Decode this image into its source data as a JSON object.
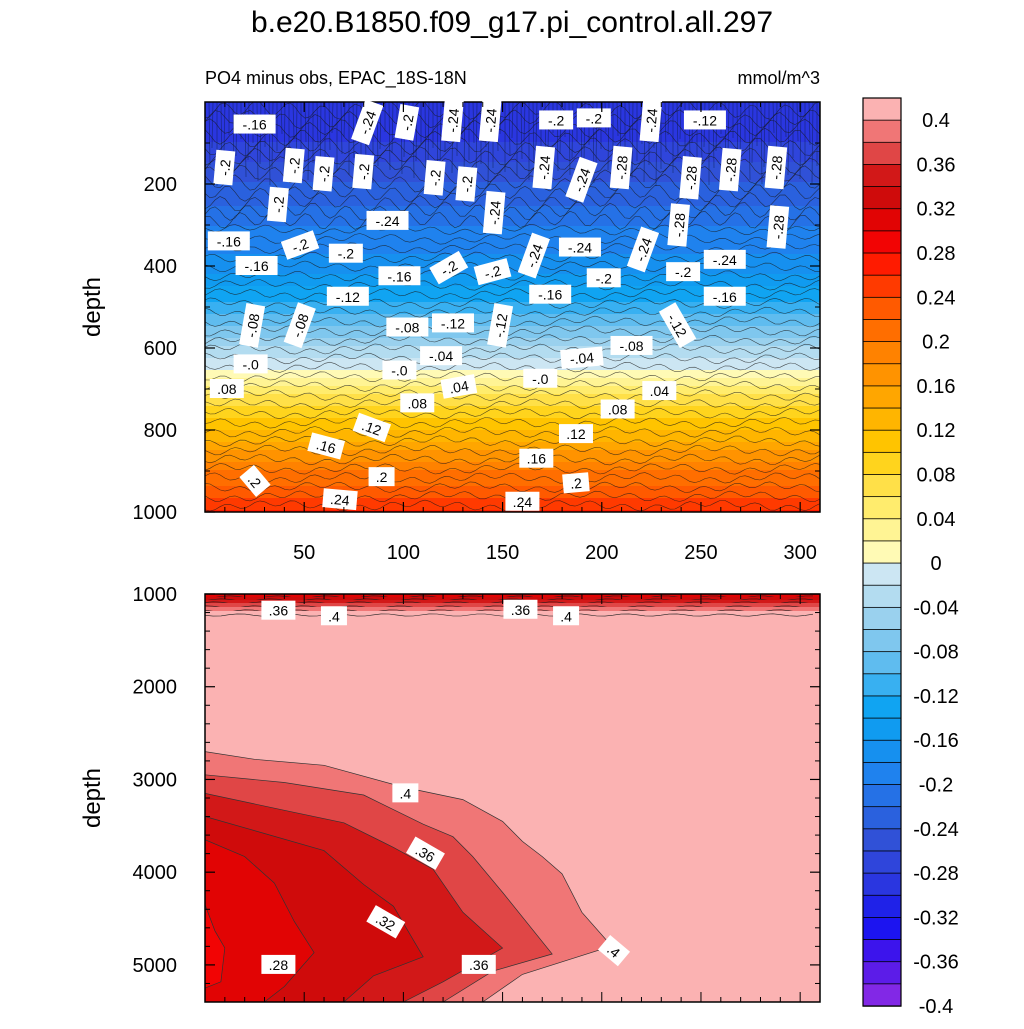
{
  "title": "b.e20.B1850.f09_g17.pi_control.all.297",
  "chart_data": [
    {
      "type": "contour",
      "panel": "upper",
      "left_subtitle": "PO4 minus obs, EPAC_18S-18N",
      "right_subtitle": "mmol/m^3",
      "ylabel": "depth",
      "xlabel": "",
      "xlim": [
        0,
        310
      ],
      "ylim": [
        1000,
        0
      ],
      "x_ticks": [
        50,
        100,
        150,
        200,
        250,
        300
      ],
      "y_ticks": [
        200,
        400,
        600,
        800,
        1000
      ],
      "profile": [
        {
          "depth": 0,
          "value": -0.3
        },
        {
          "depth": 100,
          "value": -0.28
        },
        {
          "depth": 200,
          "value": -0.24
        },
        {
          "depth": 300,
          "value": -0.2
        },
        {
          "depth": 400,
          "value": -0.17
        },
        {
          "depth": 500,
          "value": -0.11
        },
        {
          "depth": 600,
          "value": -0.04
        },
        {
          "depth": 650,
          "value": 0.0
        },
        {
          "depth": 700,
          "value": 0.05
        },
        {
          "depth": 800,
          "value": 0.12
        },
        {
          "depth": 900,
          "value": 0.2
        },
        {
          "depth": 1000,
          "value": 0.26
        }
      ],
      "contour_labels": [
        {
          "x": 25,
          "depth": 55,
          "text": "-.16",
          "angle": 0
        },
        {
          "x": 82,
          "depth": 50,
          "text": "-.24",
          "angle": -70
        },
        {
          "x": 102,
          "depth": 50,
          "text": "-.2",
          "angle": -80
        },
        {
          "x": 125,
          "depth": 45,
          "text": "-.24",
          "angle": -85
        },
        {
          "x": 144,
          "depth": 45,
          "text": "-.24",
          "angle": -85
        },
        {
          "x": 177,
          "depth": 45,
          "text": "-.2",
          "angle": 0
        },
        {
          "x": 196,
          "depth": 40,
          "text": "-.2",
          "angle": 0
        },
        {
          "x": 225,
          "depth": 45,
          "text": "-.24",
          "angle": -85
        },
        {
          "x": 252,
          "depth": 45,
          "text": "-.12",
          "angle": 0
        },
        {
          "x": 10,
          "depth": 160,
          "text": "-.2",
          "angle": -85
        },
        {
          "x": 45,
          "depth": 155,
          "text": "-.2",
          "angle": -85
        },
        {
          "x": 60,
          "depth": 175,
          "text": "-.2",
          "angle": -85
        },
        {
          "x": 80,
          "depth": 170,
          "text": "-.2",
          "angle": -85
        },
        {
          "x": 116,
          "depth": 185,
          "text": "-.2",
          "angle": -85
        },
        {
          "x": 132,
          "depth": 200,
          "text": "-.2",
          "angle": -85
        },
        {
          "x": 171,
          "depth": 160,
          "text": "-.24",
          "angle": -85
        },
        {
          "x": 190,
          "depth": 190,
          "text": "-.24",
          "angle": -70
        },
        {
          "x": 210,
          "depth": 160,
          "text": "-.28",
          "angle": -85
        },
        {
          "x": 245,
          "depth": 185,
          "text": "-.28",
          "angle": -85
        },
        {
          "x": 265,
          "depth": 165,
          "text": "-.28",
          "angle": -85
        },
        {
          "x": 288,
          "depth": 160,
          "text": "-.28",
          "angle": -85
        },
        {
          "x": 37,
          "depth": 250,
          "text": "-.2",
          "angle": -85
        },
        {
          "x": 92,
          "depth": 290,
          "text": "-.24",
          "angle": 0
        },
        {
          "x": 146,
          "depth": 270,
          "text": "-.24",
          "angle": -85
        },
        {
          "x": 239,
          "depth": 300,
          "text": "-.28",
          "angle": -85
        },
        {
          "x": 289,
          "depth": 305,
          "text": "-.28",
          "angle": -85
        },
        {
          "x": 12,
          "depth": 340,
          "text": "-.16",
          "angle": 0
        },
        {
          "x": 48,
          "depth": 350,
          "text": "-.2",
          "angle": -20
        },
        {
          "x": 71,
          "depth": 370,
          "text": "-.2",
          "angle": 0
        },
        {
          "x": 166,
          "depth": 375,
          "text": "-.24",
          "angle": -70
        },
        {
          "x": 189,
          "depth": 355,
          "text": "-.24",
          "angle": 0
        },
        {
          "x": 221,
          "depth": 360,
          "text": "-.24",
          "angle": -70
        },
        {
          "x": 262,
          "depth": 385,
          "text": "-.24",
          "angle": 0
        },
        {
          "x": 26,
          "depth": 400,
          "text": "-.16",
          "angle": 0
        },
        {
          "x": 98,
          "depth": 425,
          "text": "-.16",
          "angle": 0
        },
        {
          "x": 123,
          "depth": 405,
          "text": "-.2",
          "angle": -30
        },
        {
          "x": 145,
          "depth": 415,
          "text": "-.2",
          "angle": -15
        },
        {
          "x": 201,
          "depth": 430,
          "text": "-.2",
          "angle": 0
        },
        {
          "x": 241,
          "depth": 415,
          "text": "-.2",
          "angle": 0
        },
        {
          "x": 72,
          "depth": 475,
          "text": "-.12",
          "angle": 0
        },
        {
          "x": 174,
          "depth": 470,
          "text": "-.16",
          "angle": 0
        },
        {
          "x": 262,
          "depth": 475,
          "text": "-.16",
          "angle": 0
        },
        {
          "x": 24,
          "depth": 545,
          "text": "-.08",
          "angle": -80
        },
        {
          "x": 48,
          "depth": 545,
          "text": "-.08",
          "angle": -70
        },
        {
          "x": 102,
          "depth": 550,
          "text": "-.08",
          "angle": 0
        },
        {
          "x": 125,
          "depth": 540,
          "text": "-.12",
          "angle": 0
        },
        {
          "x": 149,
          "depth": 545,
          "text": "-.12",
          "angle": -80
        },
        {
          "x": 238,
          "depth": 545,
          "text": "-.12",
          "angle": 60
        },
        {
          "x": 215,
          "depth": 595,
          "text": "-.08",
          "angle": 0
        },
        {
          "x": 119,
          "depth": 620,
          "text": "-.04",
          "angle": 0
        },
        {
          "x": 190,
          "depth": 625,
          "text": "-.04",
          "angle": -5
        },
        {
          "x": 23,
          "depth": 640,
          "text": "-.0",
          "angle": 0
        },
        {
          "x": 98,
          "depth": 655,
          "text": "-.0",
          "angle": 0
        },
        {
          "x": 169,
          "depth": 675,
          "text": "-.0",
          "angle": 0
        },
        {
          "x": 11,
          "depth": 700,
          "text": ".08",
          "angle": 0
        },
        {
          "x": 128,
          "depth": 695,
          "text": ".04",
          "angle": -10
        },
        {
          "x": 229,
          "depth": 705,
          "text": ".04",
          "angle": 0
        },
        {
          "x": 107,
          "depth": 735,
          "text": ".08",
          "angle": 0
        },
        {
          "x": 208,
          "depth": 750,
          "text": ".08",
          "angle": 0
        },
        {
          "x": 84,
          "depth": 795,
          "text": ".12",
          "angle": 20
        },
        {
          "x": 187,
          "depth": 810,
          "text": ".12",
          "angle": 0
        },
        {
          "x": 61,
          "depth": 840,
          "text": ".16",
          "angle": 15
        },
        {
          "x": 167,
          "depth": 870,
          "text": ".16",
          "angle": 0
        },
        {
          "x": 25,
          "depth": 925,
          "text": ".2",
          "angle": 50
        },
        {
          "x": 89,
          "depth": 915,
          "text": ".2",
          "angle": 0
        },
        {
          "x": 187,
          "depth": 930,
          "text": ".2",
          "angle": -5
        },
        {
          "x": 68,
          "depth": 970,
          "text": ".24",
          "angle": 5
        },
        {
          "x": 160,
          "depth": 975,
          "text": ".24",
          "angle": 0
        }
      ]
    },
    {
      "type": "contour",
      "panel": "lower",
      "ylabel": "depth",
      "xlabel": "",
      "xlim": [
        0,
        310
      ],
      "ylim": [
        5400,
        1000
      ],
      "y_ticks": [
        1000,
        2000,
        3000,
        4000,
        5000
      ],
      "boundaries": [
        {
          "level": 0.4,
          "points": [
            [
              0,
              2700
            ],
            [
              25,
              2750
            ],
            [
              60,
              2880
            ],
            [
              100,
              3050
            ],
            [
              130,
              3250
            ],
            [
              150,
              3420
            ],
            [
              160,
              3700
            ],
            [
              170,
              3800
            ],
            [
              180,
              4050
            ],
            [
              190,
              4400
            ],
            [
              205,
              4830
            ],
            [
              160,
              5070
            ],
            [
              140,
              5400
            ]
          ]
        },
        {
          "level": 0.38,
          "points": [
            [
              0,
              2950
            ],
            [
              40,
              3000
            ],
            [
              80,
              3200
            ],
            [
              110,
              3450
            ],
            [
              125,
              3650
            ],
            [
              135,
              3800
            ],
            [
              150,
              4250
            ],
            [
              175,
              4850
            ],
            [
              145,
              5100
            ],
            [
              120,
              5400
            ]
          ]
        },
        {
          "level": 0.36,
          "points": [
            [
              0,
              3150
            ],
            [
              40,
              3300
            ],
            [
              70,
              3500
            ],
            [
              95,
              3700
            ],
            [
              115,
              4000
            ],
            [
              130,
              4400
            ],
            [
              150,
              4850
            ],
            [
              120,
              5150
            ],
            [
              100,
              5400
            ]
          ]
        },
        {
          "level": 0.34,
          "points": [
            [
              0,
              3400
            ],
            [
              30,
              3550
            ],
            [
              60,
              3800
            ],
            [
              80,
              4100
            ],
            [
              95,
              4400
            ],
            [
              110,
              4880
            ],
            [
              85,
              5150
            ],
            [
              70,
              5400
            ]
          ]
        },
        {
          "level": 0.32,
          "points": [
            [
              0,
              3650
            ],
            [
              20,
              3800
            ],
            [
              35,
              4150
            ],
            [
              45,
              4500
            ],
            [
              55,
              4900
            ],
            [
              40,
              5200
            ],
            [
              30,
              5400
            ]
          ]
        },
        {
          "level": 0.3,
          "points": [
            [
              0,
              4350
            ],
            [
              5,
              4600
            ],
            [
              10,
              4850
            ],
            [
              8,
              5150
            ],
            [
              0,
              5250
            ]
          ]
        }
      ],
      "top_band_levels": [
        0.3,
        0.32,
        0.34,
        0.36,
        0.38,
        0.4
      ],
      "contour_labels": [
        {
          "x": 37,
          "depth": 1180,
          "text": ".36",
          "angle": 0
        },
        {
          "x": 65,
          "depth": 1240,
          "text": ".4",
          "angle": 0
        },
        {
          "x": 159,
          "depth": 1170,
          "text": ".36",
          "angle": 0
        },
        {
          "x": 182,
          "depth": 1240,
          "text": ".4",
          "angle": 0
        },
        {
          "x": 101,
          "depth": 3150,
          "text": ".4",
          "angle": 0
        },
        {
          "x": 111,
          "depth": 3800,
          "text": ".36",
          "angle": 30
        },
        {
          "x": 91,
          "depth": 4540,
          "text": ".32",
          "angle": 30
        },
        {
          "x": 37,
          "depth": 5000,
          "text": ".28",
          "angle": 0
        },
        {
          "x": 138,
          "depth": 5000,
          "text": ".36",
          "angle": 0
        },
        {
          "x": 206,
          "depth": 4850,
          "text": ".4",
          "angle": 40
        }
      ]
    }
  ],
  "colorbar": {
    "levels": [
      0.4,
      0.38,
      0.36,
      0.34,
      0.32,
      0.3,
      0.28,
      0.26,
      0.24,
      0.22,
      0.2,
      0.18,
      0.16,
      0.14,
      0.12,
      0.1,
      0.08,
      0.06,
      0.04,
      0.02,
      0,
      -0.02,
      -0.04,
      -0.06,
      -0.08,
      -0.1,
      -0.12,
      -0.14,
      -0.16,
      -0.18,
      -0.2,
      -0.22,
      -0.24,
      -0.26,
      -0.28,
      -0.3,
      -0.32,
      -0.34,
      -0.36,
      -0.38,
      -0.4
    ],
    "labels": [
      "0.4",
      "0.36",
      "0.32",
      "0.28",
      "0.24",
      "0.2",
      "0.16",
      "0.12",
      "0.08",
      "0.04",
      "0",
      "-0.04",
      "-0.08",
      "-0.12",
      "-0.16",
      "-0.2",
      "-0.24",
      "-0.28",
      "-0.32",
      "-0.36",
      "-0.4"
    ],
    "colors": [
      "#fbb2b2",
      "#f07676",
      "#e04646",
      "#d21818",
      "#cf0b0b",
      "#e10404",
      "#f20404",
      "#ff1b00",
      "#ff3a00",
      "#ff5a00",
      "#ff6e00",
      "#ff8200",
      "#ff9300",
      "#ffa600",
      "#ffb500",
      "#ffc400",
      "#ffd41d",
      "#ffe048",
      "#ffec6d",
      "#fff494",
      "#fffab5",
      "#cce6f3",
      "#b3dcf0",
      "#9ad1ee",
      "#7fc7ee",
      "#5fbcef",
      "#38b0f1",
      "#10a4f2",
      "#109bf0",
      "#1690ef",
      "#1f82ee",
      "#2571e6",
      "#2a61de",
      "#3051d7",
      "#2f45db",
      "#2a36e0",
      "#1f22e8",
      "#1c14f0",
      "#3c14ec",
      "#5c1ce8",
      "#8228e6"
    ]
  }
}
